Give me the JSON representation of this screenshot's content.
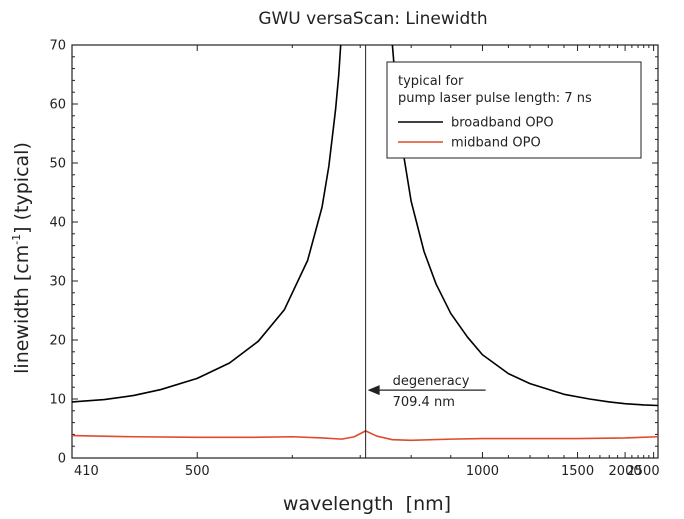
{
  "chart_data": {
    "type": "line",
    "title": "GWU versaScan: Linewidth",
    "xlabel": "wavelength  [nm]",
    "ylabel": {
      "main": "linewidth [cm",
      "sup": "-1",
      "rest": "] (typical)"
    },
    "x_scale": "reciprocal",
    "xlim": [
      410,
      2600
    ],
    "ylim": [
      0,
      70
    ],
    "x_ticks": [
      410,
      500,
      1000,
      1500,
      2000,
      2500
    ],
    "x_tick_labels": [
      "410",
      "500",
      "1000",
      "1500",
      "2000",
      "2500"
    ],
    "y_ticks": [
      0,
      10,
      20,
      30,
      40,
      50,
      60,
      70
    ],
    "y_tick_labels": [
      "0",
      "10",
      "20",
      "30",
      "40",
      "50",
      "60",
      "70"
    ],
    "legend": {
      "placement": "top-right",
      "header": [
        "typical for",
        "pump laser pulse length: 7 ns"
      ]
    },
    "series": [
      {
        "name": "broadband OPO",
        "color": "#000000",
        "x": [
          410,
          430,
          450,
          470,
          500,
          530,
          560,
          590,
          620,
          640,
          650,
          660,
          665,
          668,
          760,
          770,
          780,
          800,
          830,
          860,
          900,
          950,
          1000,
          1100,
          1200,
          1400,
          1600,
          1800,
          2000,
          2300,
          2600
        ],
        "y": [
          9.5,
          9.9,
          10.6,
          11.6,
          13.5,
          16.1,
          19.8,
          25.1,
          33.5,
          42.5,
          49.5,
          59,
          65,
          70,
          70,
          60,
          53,
          43.5,
          35,
          29.5,
          24.5,
          20.5,
          17.5,
          14.3,
          12.6,
          10.8,
          10.0,
          9.5,
          9.2,
          9.0,
          8.9
        ]
      },
      {
        "name": "midband OPO",
        "color": "#e04a2b",
        "x": [
          410,
          450,
          500,
          550,
          600,
          640,
          670,
          690,
          709.4,
          730,
          760,
          800,
          900,
          1000,
          1200,
          1500,
          2000,
          2600
        ],
        "y": [
          3.8,
          3.6,
          3.5,
          3.5,
          3.6,
          3.4,
          3.2,
          3.6,
          4.6,
          3.7,
          3.1,
          3.0,
          3.2,
          3.3,
          3.3,
          3.3,
          3.4,
          3.6
        ]
      }
    ],
    "annotation": {
      "x": 709.4,
      "label_lines": [
        "degeneracy",
        "709.4 nm"
      ],
      "arrow_y": 11.5
    }
  }
}
